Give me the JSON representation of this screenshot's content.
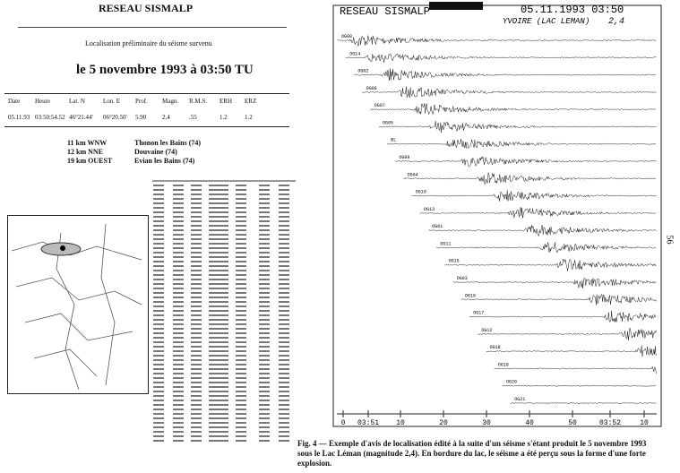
{
  "header": {
    "title": "RESEAU SISMALP",
    "subtitle": "Localisation préliminaire du séisme survenu",
    "event": "le 5 novembre 1993 à 03:50 TU"
  },
  "table": {
    "columns": [
      "Date",
      "Heure",
      "Lat. N",
      "Lon. E",
      "Prof.",
      "Magn.",
      "R.M.S.",
      "ERH",
      "ERZ"
    ],
    "rows": [
      [
        "05.11.93",
        "03:50:54.52",
        "46°21.44'",
        "06°20.50'",
        "5.90",
        "2,4",
        ".55",
        "1.2",
        "1.2"
      ]
    ]
  },
  "locations": [
    {
      "distance": "11 km WNW",
      "place": "Thonon les Bains (74)"
    },
    {
      "distance": "12 km NNE",
      "place": "Douvaine (74)"
    },
    {
      "distance": "19 km OUEST",
      "place": "Evian les Bains (74)"
    }
  ],
  "figure": {
    "network": "RESEAU SISMALP",
    "datetime": "05.11.1993 03:50",
    "location": "YVOIRE (LAC LEMAN)",
    "magnitude": "2,4",
    "stations": [
      "OG08",
      "OG14",
      "OG02",
      "OG06",
      "OG07",
      "OG05",
      "BL",
      "OG09",
      "OG04",
      "OG10",
      "OG13",
      "OG01",
      "OG11",
      "OG15",
      "OG03",
      "OG16",
      "OG17",
      "OG12",
      "OG18",
      "OG19",
      "OG20",
      "OG21"
    ],
    "time_axis": [
      "0",
      "03:51",
      "10",
      "20",
      "30",
      "40",
      "50",
      "03:52",
      "10"
    ]
  },
  "caption": "Fig. 4 — Exemple d'avis de localisation édité à la suite d'un séisme s'étant produit le 5 novembre 1993 sous le Lac Léman (magnitude 2,4). En bordure du lac, le séisme a été perçu sous la forme d'une forte explosion.",
  "page_number": "56"
}
